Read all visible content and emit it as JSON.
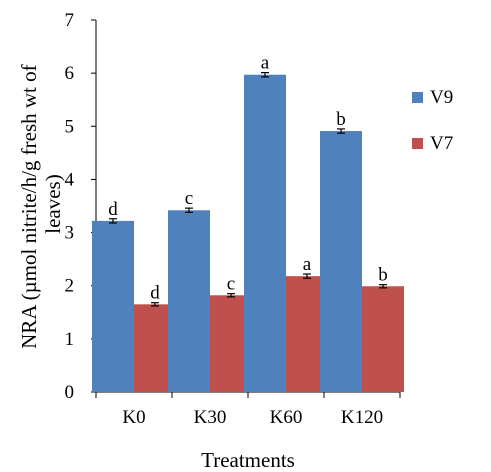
{
  "chart_data": {
    "type": "bar",
    "xlabel": "Treatments",
    "ylabel": "NRA (µmol nitrite/h/g fresh wt of leaves)",
    "ylabel_lines": [
      "NRA (µmol nitrite/h/g fresh wt of",
      "leaves)"
    ],
    "ylim": [
      0,
      7
    ],
    "yticks": [
      0,
      1,
      2,
      3,
      4,
      5,
      6,
      7
    ],
    "grid": false,
    "legend_position": "right",
    "categories": [
      "K0",
      "K30",
      "K60",
      "K120"
    ],
    "series": [
      {
        "name": "V9",
        "color": "#4f81bd",
        "values": [
          3.22,
          3.42,
          5.97,
          4.91
        ],
        "errors": [
          0.04,
          0.04,
          0.04,
          0.04
        ],
        "significance": [
          "d",
          "c",
          "a",
          "b"
        ]
      },
      {
        "name": "V7",
        "color": "#c0504d",
        "values": [
          1.65,
          1.82,
          2.18,
          1.99
        ],
        "errors": [
          0.03,
          0.03,
          0.04,
          0.03
        ],
        "significance": [
          "d",
          "c",
          "a",
          "b"
        ]
      }
    ]
  }
}
